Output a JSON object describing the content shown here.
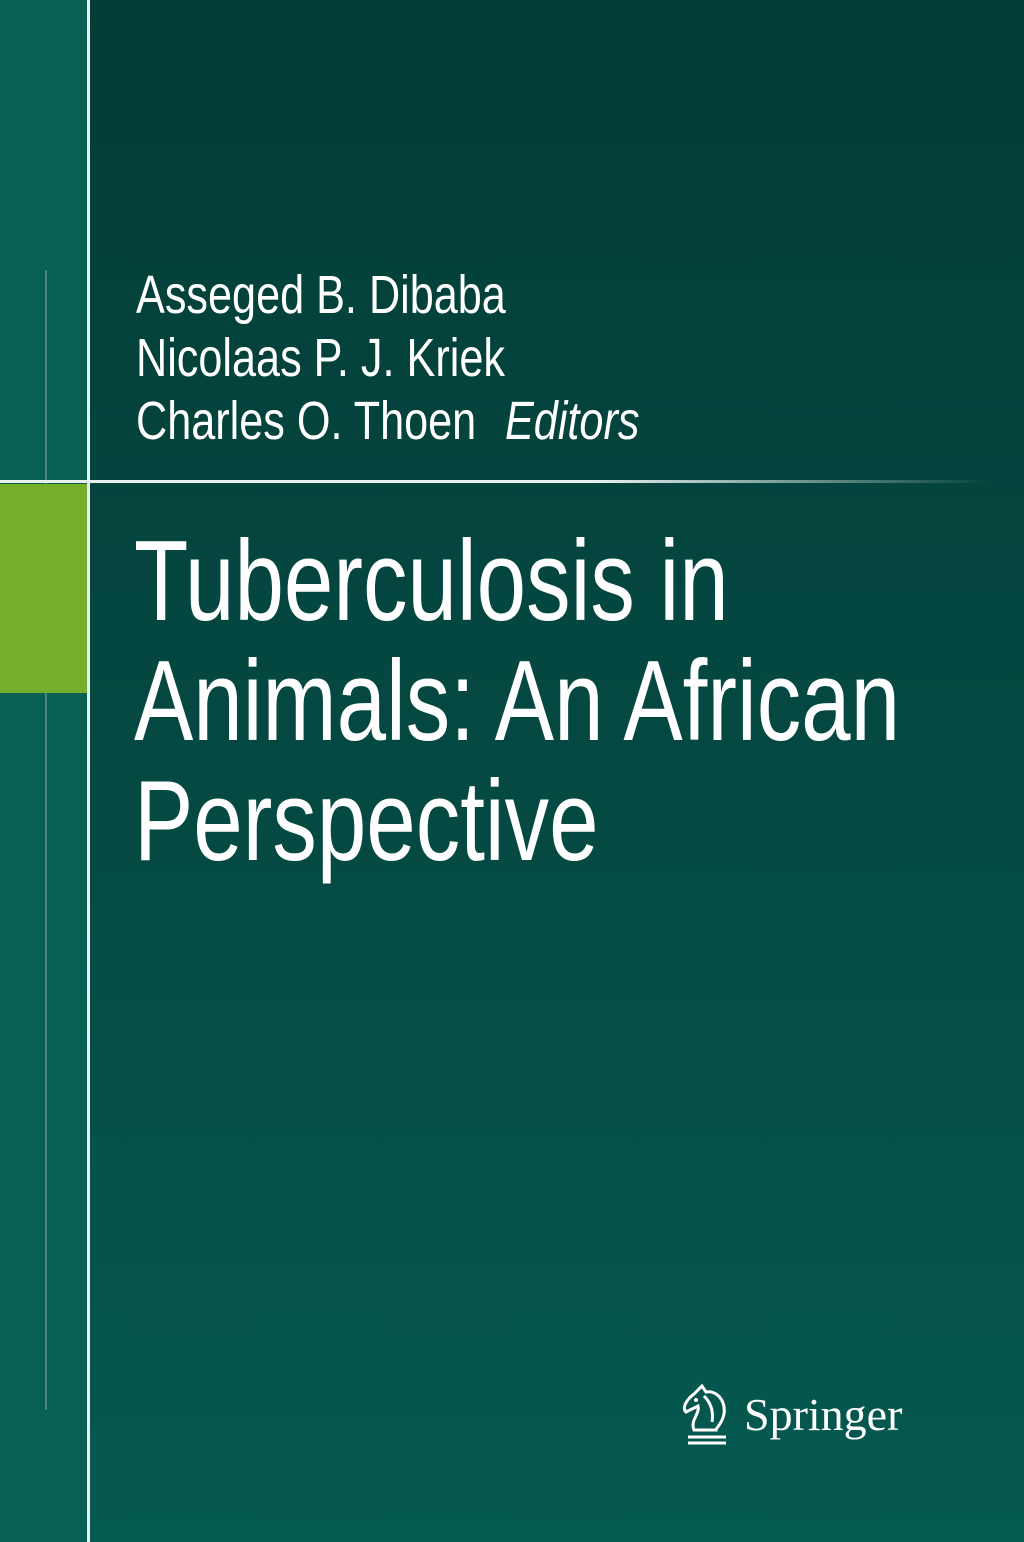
{
  "cover": {
    "authors": [
      "Asseged B. Dibaba",
      "Nicolaas P. J. Kriek",
      "Charles O. Thoen"
    ],
    "editors_label": "Editors",
    "title_lines": [
      "Tuberculosis in",
      "Animals: An African",
      "Perspective"
    ],
    "publisher": "Springer",
    "colors": {
      "background": "#044a43",
      "strip": "#0a5f55",
      "accent": "#76ad2a"
    }
  }
}
